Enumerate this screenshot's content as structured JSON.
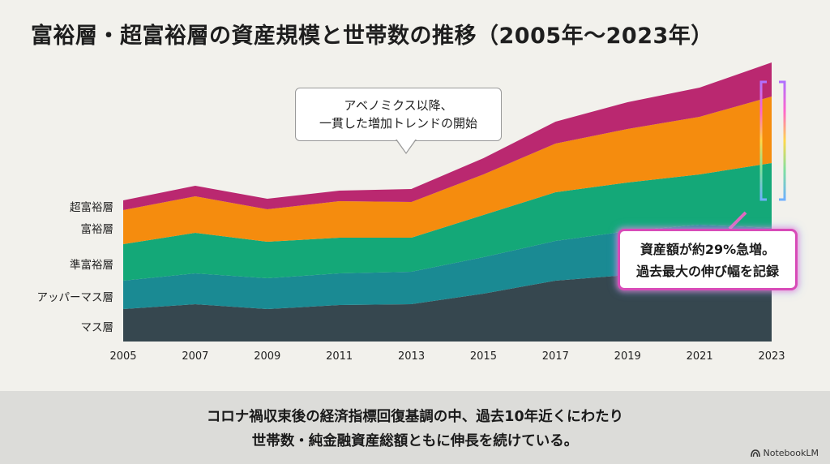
{
  "title": "富裕層・超富裕層の資産規模と世帯数の推移（2005年～2023年）",
  "chart_data": {
    "type": "area",
    "stacked": true,
    "title": "富裕層・超富裕層の資産規模と世帯数の推移（2005年～2023年）",
    "categories": [
      "2005",
      "2007",
      "2009",
      "2011",
      "2013",
      "2015",
      "2017",
      "2019",
      "2021",
      "2023"
    ],
    "ylim": [
      0,
      340
    ],
    "series": [
      {
        "name": "マス層",
        "color": "#36474f",
        "values": [
          40,
          46,
          40,
          45,
          46,
          59,
          75,
          82,
          96,
          110
        ]
      },
      {
        "name": "アッパーマス層",
        "color": "#1a8a93",
        "values": [
          35,
          38,
          38,
          39,
          40,
          45,
          49,
          54,
          48,
          30
        ]
      },
      {
        "name": "準富裕層",
        "color": "#14a878",
        "values": [
          45,
          50,
          45,
          44,
          42,
          52,
          60,
          60,
          62,
          80
        ]
      },
      {
        "name": "富裕層",
        "color": "#f58c0e",
        "values": [
          42,
          45,
          40,
          45,
          44,
          50,
          60,
          66,
          71,
          82
        ]
      },
      {
        "name": "超富裕層",
        "color": "#ba2870",
        "values": [
          12,
          13,
          13,
          13,
          16,
          20,
          27,
          33,
          36,
          42
        ]
      }
    ],
    "xlabel": "",
    "ylabel": ""
  },
  "callout": {
    "line1": "アベノミクス以降、",
    "line2": "一貫した増加トレンドの開始"
  },
  "note": {
    "line1": "資産額が約29%急増。",
    "line2": "過去最大の伸び幅を記録"
  },
  "summary": {
    "line1": "コロナ禍収束後の経済指標回復基調の中、過去10年近くにわたり",
    "line2": "世帯数・純金融資産総額ともに伸長を続けている。"
  },
  "brand": "NotebookLM"
}
